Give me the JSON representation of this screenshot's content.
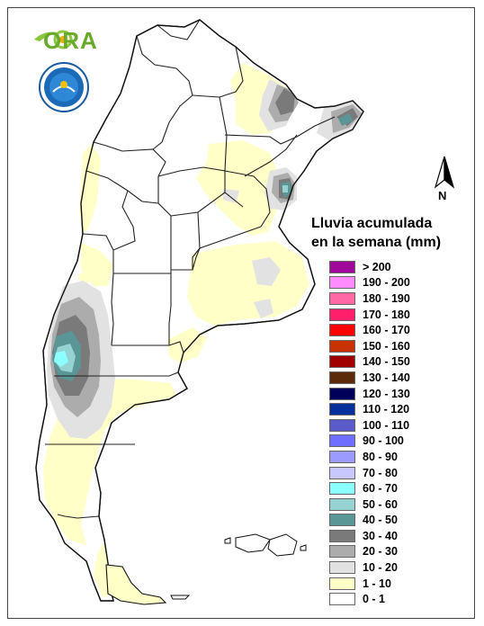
{
  "logo": {
    "ora_text": "ORA"
  },
  "north_arrow": {
    "label": "N"
  },
  "legend": {
    "title_line1": "Lluvia acumulada",
    "title_line2": "en la semana (mm)",
    "items": [
      {
        "label": "> 200",
        "color": "#a0089b"
      },
      {
        "label": "190 - 200",
        "color": "#ff8cff"
      },
      {
        "label": "180 - 190",
        "color": "#ff6aa5"
      },
      {
        "label": "170 - 180",
        "color": "#ff1f6b"
      },
      {
        "label": "160 - 170",
        "color": "#ff0000"
      },
      {
        "label": "150 - 160",
        "color": "#c83200"
      },
      {
        "label": "140 - 150",
        "color": "#a00000"
      },
      {
        "label": "130 - 140",
        "color": "#5a2a0a"
      },
      {
        "label": "120 - 130",
        "color": "#00005a"
      },
      {
        "label": "110 - 120",
        "color": "#00309a"
      },
      {
        "label": "100 - 110",
        "color": "#5a5ac8"
      },
      {
        "label": "90 - 100",
        "color": "#6e6eff"
      },
      {
        "label": "80 - 90",
        "color": "#9a9aff"
      },
      {
        "label": "70 - 80",
        "color": "#c8c8ff"
      },
      {
        "label": "60 - 70",
        "color": "#8cffff"
      },
      {
        "label": "50 - 60",
        "color": "#96d2d2"
      },
      {
        "label": "40 - 50",
        "color": "#5a9696"
      },
      {
        "label": "30 - 40",
        "color": "#7a7a7a"
      },
      {
        "label": "20 - 30",
        "color": "#acacac"
      },
      {
        "label": "10 - 20",
        "color": "#e2e2e2"
      },
      {
        "label": "1 - 10",
        "color": "#ffffc8"
      },
      {
        "label": "0 - 1",
        "color": "#ffffff"
      }
    ]
  }
}
